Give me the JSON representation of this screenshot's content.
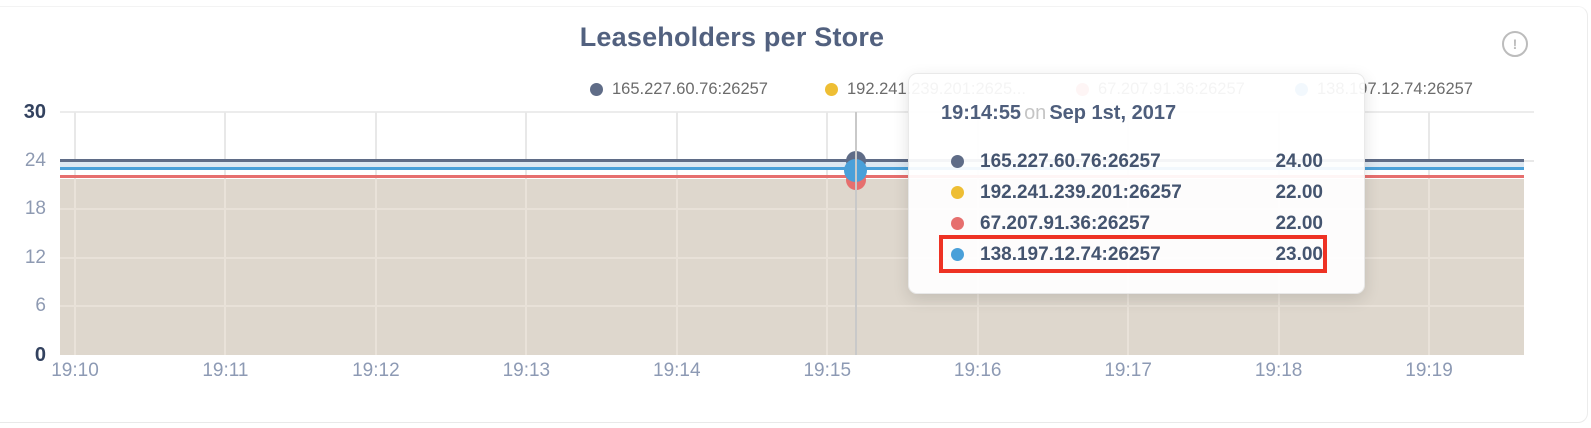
{
  "card": {
    "title": "Leaseholders per Store",
    "warning_glyph": "!"
  },
  "legend": {
    "items": [
      {
        "label": "165.227.60.76:26257",
        "color": "#5f6c87"
      },
      {
        "label": "192.241.239.201:2625...",
        "color": "#eebe34"
      },
      {
        "label": "67.207.91.36:26257",
        "color": "#e66f6e"
      },
      {
        "label": "138.197.12.74:26257",
        "color": "#4aa0d9"
      }
    ]
  },
  "tooltip": {
    "time": "19:14:55",
    "on_word": "on",
    "date": "Sep 1st, 2017",
    "highlight_color": "#ee3224",
    "rows": [
      {
        "name": "165.227.60.76:26257",
        "value": "24.00",
        "color": "#5f6c87",
        "highlighted": false
      },
      {
        "name": "192.241.239.201:26257",
        "value": "22.00",
        "color": "#eebe34",
        "highlighted": false
      },
      {
        "name": "67.207.91.36:26257",
        "value": "22.00",
        "color": "#e66f6e",
        "highlighted": false
      },
      {
        "name": "138.197.12.74:26257",
        "value": "23.00",
        "color": "#4aa0d9",
        "highlighted": true
      }
    ]
  },
  "chart_data": {
    "type": "line",
    "title": "Leaseholders per Store",
    "xlabel": "",
    "ylabel": "",
    "x_ticks": [
      "19:10",
      "19:11",
      "19:12",
      "19:13",
      "19:14",
      "19:15",
      "19:16",
      "19:17",
      "19:18",
      "19:19"
    ],
    "y_ticks": [
      0,
      6,
      12,
      18,
      24,
      30
    ],
    "emphasized_y_ticks": [
      0,
      30
    ],
    "ylim": [
      0,
      30
    ],
    "grid": true,
    "legend_position": "top",
    "fill_color": "#ded7cd",
    "series": [
      {
        "name": "165.227.60.76:26257",
        "color": "#5f6c87",
        "value": 24,
        "values_constant": true
      },
      {
        "name": "192.241.239.201:26257",
        "color": "#eebe34",
        "value": 22,
        "values_constant": true
      },
      {
        "name": "67.207.91.36:26257",
        "color": "#e66f6e",
        "value": 22,
        "values_constant": true
      },
      {
        "name": "138.197.12.74:26257",
        "color": "#4aa0d9",
        "value": 23,
        "values_constant": true
      }
    ],
    "hover": {
      "time": "19:14:55",
      "date": "Sep 1st, 2017",
      "values": {
        "165.227.60.76:26257": 24,
        "192.241.239.201:26257": 22,
        "67.207.91.36:26257": 22,
        "138.197.12.74:26257": 23
      }
    }
  }
}
